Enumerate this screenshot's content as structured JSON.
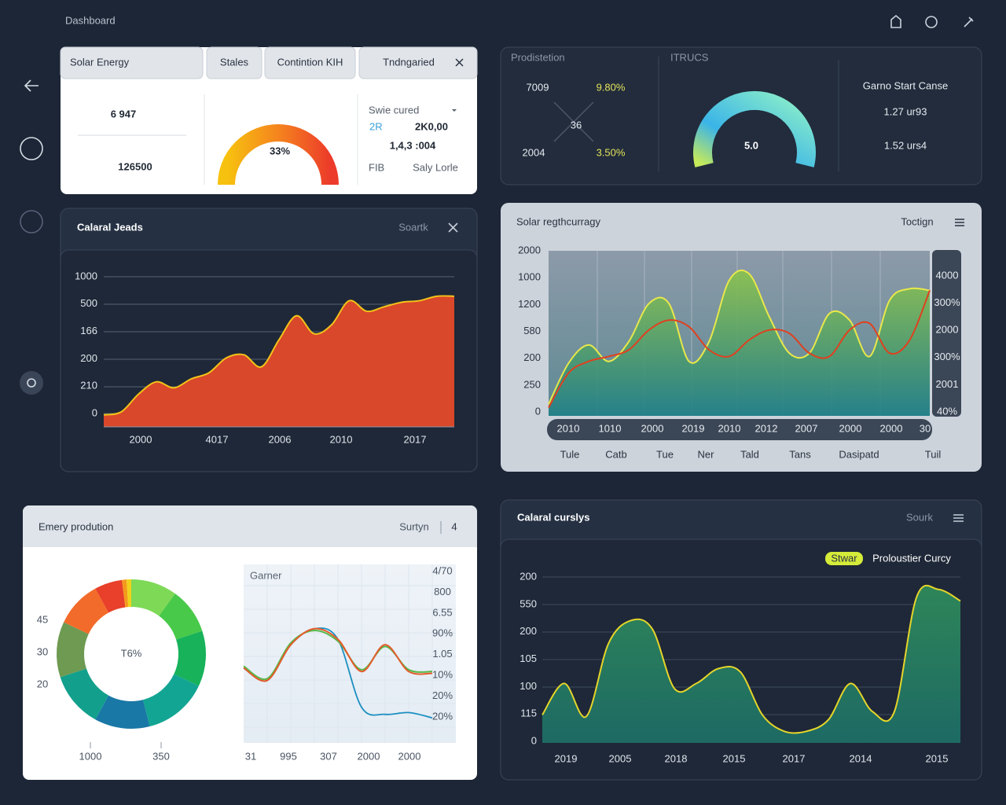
{
  "header": {
    "title": "Dashboard"
  },
  "summary": {
    "tabs": [
      "Solar Energy",
      "Stales",
      "Contintion KIH",
      "Tndngaried"
    ],
    "stats": [
      "6 947",
      "126500"
    ],
    "gauge": "33%",
    "list": {
      "title": "Swie cured",
      "rows": [
        [
          "2R",
          "2K0,00"
        ],
        [
          "1,4,3 :004"
        ],
        [
          "FIB",
          "Saly Lorle"
        ]
      ]
    }
  },
  "production": {
    "title": "Prodistetion",
    "values": [
      "7009",
      "9.80%",
      "36",
      "2004",
      "3.50%"
    ],
    "gauge_title": "ITRUCS",
    "gauge": "5.0",
    "side_title": "Garno Start Canse",
    "side_values": [
      "1.27 ur93",
      "1.52 urs4"
    ]
  },
  "jeads": {
    "title": "Calaral Jeads",
    "action": "Soartk",
    "y_labels": [
      "1000",
      "500",
      "166",
      "200",
      "210",
      "0"
    ],
    "x_labels": [
      "2000",
      "4017",
      "2006",
      "2010",
      "2017"
    ],
    "ylim": [
      0,
      100
    ],
    "series": [
      {
        "color": "#f2c318",
        "fill": [
          "#d9482b",
          "#d9482b"
        ],
        "values": [
          8,
          10,
          22,
          30,
          26,
          32,
          36,
          46,
          48,
          40,
          58,
          74,
          62,
          68,
          84,
          77,
          80,
          83,
          84,
          87,
          87
        ]
      }
    ]
  },
  "solar": {
    "title": "Solar regthcurragy",
    "action": "Toctign",
    "y_labels": [
      "2000",
      "1000",
      "1200",
      "580",
      "200",
      "250",
      "0"
    ],
    "y2_labels": [
      "4000",
      "300%",
      "2000",
      "300%",
      "2001",
      "40%"
    ],
    "x_labels": [
      "2010",
      "1010",
      "2000",
      "2019",
      "2010",
      "2012",
      "2007",
      "2000",
      "2000",
      "30"
    ],
    "x2_labels": [
      "Tule",
      "Catb",
      "Tue",
      "Ner",
      "Tald",
      "Tans",
      "Dasipatd",
      "Tuil"
    ],
    "ylim": [
      0,
      100
    ],
    "series": [
      {
        "color": "#e8e84a",
        "fill": [
          "#8cc34b",
          "#1f7f88"
        ],
        "values": [
          7,
          32,
          43,
          33,
          45,
          68,
          68,
          33,
          45,
          82,
          86,
          60,
          38,
          38,
          62,
          58,
          36,
          70,
          77,
          76
        ]
      },
      {
        "color": "#e0401f",
        "values": [
          5,
          26,
          33,
          36,
          40,
          52,
          58,
          54,
          40,
          36,
          46,
          52,
          50,
          38,
          36,
          52,
          56,
          38,
          46,
          76
        ]
      }
    ]
  },
  "energy": {
    "title": "Emery prodution",
    "action": "Surtyn",
    "badge": "4",
    "donut": {
      "values": [
        10,
        10,
        12,
        14,
        12,
        12,
        12,
        10,
        6,
        1,
        1
      ],
      "colors": [
        "#7ed957",
        "#48c94a",
        "#17b25a",
        "#13a593",
        "#1a78a6",
        "#12a08c",
        "#6e9a52",
        "#f36b2a",
        "#e8402a",
        "#f39a1c",
        "#f0d21c"
      ],
      "center": "T6%",
      "labels": [
        "45",
        "30",
        "20"
      ],
      "x_labels": [
        "1000",
        "350"
      ]
    },
    "lines": {
      "title": "Garner",
      "y_labels": [
        "4/70",
        "800",
        "6.55",
        "90%",
        "1.05",
        "10%",
        "20%",
        "20%"
      ],
      "x_labels": [
        "31",
        "995",
        "307",
        "2000",
        "2000"
      ],
      "ylim": [
        0,
        100
      ],
      "series": [
        {
          "color": "#1b8fc0",
          "values": [
            42,
            35,
            55,
            64,
            58,
            20,
            16,
            17,
            14
          ]
        },
        {
          "color": "#58b84a",
          "values": [
            43,
            36,
            56,
            63,
            57,
            41,
            54,
            41,
            40
          ]
        },
        {
          "color": "#e55a2a",
          "values": [
            42,
            35,
            55,
            64,
            58,
            40,
            55,
            40,
            39
          ]
        }
      ]
    }
  },
  "curves": {
    "title": "Calaral curslys",
    "action": "Sourk",
    "legend": {
      "badge": "Stwar",
      "label": "Proloustier Curcy"
    },
    "y_labels": [
      "200",
      "550",
      "200",
      "105",
      "100",
      "115",
      "0"
    ],
    "x_labels": [
      "2019",
      "2005",
      "2018",
      "2015",
      "2017",
      "2014",
      "2015"
    ],
    "ylim": [
      0,
      100
    ],
    "series": [
      {
        "color": "#e6d52a",
        "fill": [
          "#2f8a5a",
          "#1d6d66"
        ],
        "values": [
          17,
          36,
          16,
          60,
          74,
          69,
          33,
          36,
          45,
          43,
          17,
          7,
          7,
          14,
          36,
          19,
          19,
          88,
          93,
          86
        ]
      }
    ]
  }
}
